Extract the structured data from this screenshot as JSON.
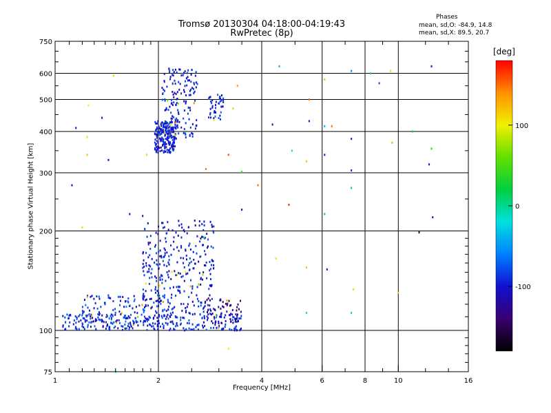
{
  "title_line1": "Tromsø 20130304 04:18:00-04:19:43",
  "title_line2": "RwPretec (8p)",
  "phase_stats": {
    "heading": "Phases",
    "line1": "mean, sd,O: -84.9, 14.8",
    "line2": "mean, sd,X:  89.5, 20.7"
  },
  "colorbar": {
    "unit_label": "[deg]",
    "range": [
      -180,
      180
    ],
    "ticks": [
      {
        "value": 100,
        "label": "100"
      },
      {
        "value": 0,
        "label": "0"
      },
      {
        "value": -100,
        "label": "-100"
      }
    ],
    "stops": [
      "#000000",
      "#3a0070",
      "#1010d0",
      "#0080ff",
      "#00e0e0",
      "#00d040",
      "#60e000",
      "#f0f000",
      "#ff9000",
      "#ff0000"
    ]
  },
  "chart_data": {
    "type": "scatter",
    "title": "Tromsø 20130304 04:18:00-04:19:43",
    "subtitle": "RwPretec (8p)",
    "xlabel": "Frequency [MHz]",
    "ylabel": "Stationary phase Virtual Height [km]",
    "x_scale": "log",
    "y_scale": "log",
    "xlim": [
      1,
      16
    ],
    "ylim": [
      75,
      750
    ],
    "x_ticks": [
      {
        "value": 1,
        "label": "1"
      },
      {
        "value": 2,
        "label": "2"
      },
      {
        "value": 4,
        "label": "4"
      },
      {
        "value": 6,
        "label": "6"
      },
      {
        "value": 8,
        "label": "8"
      },
      {
        "value": 10,
        "label": "10"
      },
      {
        "value": 16,
        "label": "16"
      }
    ],
    "y_ticks": [
      {
        "value": 75,
        "label": "75"
      },
      {
        "value": 100,
        "label": "100"
      },
      {
        "value": 200,
        "label": "200"
      },
      {
        "value": 300,
        "label": "300"
      },
      {
        "value": 400,
        "label": "400"
      },
      {
        "value": 500,
        "label": "500"
      },
      {
        "value": 600,
        "label": "600"
      },
      {
        "value": 750,
        "label": "750"
      }
    ],
    "grid_x": [
      2,
      4,
      6,
      8,
      10
    ],
    "grid_y": [
      100,
      200,
      300,
      400,
      500,
      600
    ],
    "minor_x": [
      1.1,
      1.2,
      1.3,
      1.4,
      1.5,
      1.6,
      1.7,
      1.8,
      1.9,
      2.5,
      3,
      3.5,
      5,
      7,
      9,
      12,
      14
    ],
    "minor_y": [
      80,
      85,
      90,
      95,
      110,
      120,
      130,
      140,
      150,
      160,
      170,
      180,
      190,
      250,
      350,
      450,
      550,
      650,
      700
    ],
    "color_by": "phase [deg]",
    "clusters": [
      {
        "x": [
          1.95,
          2.25
        ],
        "y": [
          345,
          430
        ],
        "n": 220,
        "phase": [
          -115,
          -75
        ]
      },
      {
        "x": [
          2.05,
          2.6
        ],
        "y": [
          380,
          620
        ],
        "n": 160,
        "phase": [
          -115,
          -75
        ]
      },
      {
        "x": [
          2.8,
          3.1
        ],
        "y": [
          430,
          520
        ],
        "n": 45,
        "phase": [
          -115,
          -70
        ]
      },
      {
        "x": [
          1.05,
          3.5
        ],
        "y": [
          100,
          112
        ],
        "n": 260,
        "phase": [
          -115,
          -70
        ]
      },
      {
        "x": [
          1.2,
          2.2
        ],
        "y": [
          102,
          128
        ],
        "n": 140,
        "phase": [
          -115,
          -60
        ]
      },
      {
        "x": [
          1.8,
          2.9
        ],
        "y": [
          112,
          215
        ],
        "n": 320,
        "phase": [
          -115,
          -75
        ]
      },
      {
        "x": [
          2.7,
          3.5
        ],
        "y": [
          105,
          125
        ],
        "n": 60,
        "phase": [
          -150,
          -100
        ]
      }
    ],
    "sparse_points": [
      {
        "x": 4.5,
        "y": 630,
        "phase": -40
      },
      {
        "x": 5.5,
        "y": 500,
        "phase": 150
      },
      {
        "x": 7.3,
        "y": 610,
        "phase": -60
      },
      {
        "x": 9.5,
        "y": 610,
        "phase": 110
      },
      {
        "x": 12.5,
        "y": 630,
        "phase": -110
      },
      {
        "x": 3.4,
        "y": 550,
        "phase": 130
      },
      {
        "x": 3.3,
        "y": 470,
        "phase": 115
      },
      {
        "x": 6.1,
        "y": 575,
        "phase": 120
      },
      {
        "x": 8.3,
        "y": 600,
        "phase": -10
      },
      {
        "x": 8.8,
        "y": 560,
        "phase": -80
      },
      {
        "x": 4.3,
        "y": 420,
        "phase": -120
      },
      {
        "x": 5.5,
        "y": 430,
        "phase": -110
      },
      {
        "x": 6.1,
        "y": 415,
        "phase": -40
      },
      {
        "x": 6.4,
        "y": 415,
        "phase": 150
      },
      {
        "x": 7.3,
        "y": 380,
        "phase": -105
      },
      {
        "x": 9.6,
        "y": 370,
        "phase": 70
      },
      {
        "x": 12.5,
        "y": 355,
        "phase": 40
      },
      {
        "x": 11,
        "y": 400,
        "phase": 30
      },
      {
        "x": 4.9,
        "y": 350,
        "phase": -20
      },
      {
        "x": 5.4,
        "y": 325,
        "phase": 120
      },
      {
        "x": 6.1,
        "y": 340,
        "phase": -105
      },
      {
        "x": 7.3,
        "y": 305,
        "phase": -95
      },
      {
        "x": 12.3,
        "y": 318,
        "phase": -105
      },
      {
        "x": 3.2,
        "y": 340,
        "phase": 160
      },
      {
        "x": 3.5,
        "y": 302,
        "phase": 40
      },
      {
        "x": 3.9,
        "y": 275,
        "phase": 150
      },
      {
        "x": 7.3,
        "y": 270,
        "phase": 10
      },
      {
        "x": 4.8,
        "y": 240,
        "phase": 170
      },
      {
        "x": 3.5,
        "y": 232,
        "phase": -120
      },
      {
        "x": 6.1,
        "y": 225,
        "phase": 20
      },
      {
        "x": 12.6,
        "y": 220,
        "phase": -110
      },
      {
        "x": 11.5,
        "y": 198,
        "phase": -160
      },
      {
        "x": 4.4,
        "y": 165,
        "phase": 110
      },
      {
        "x": 5.4,
        "y": 155,
        "phase": 120
      },
      {
        "x": 6.2,
        "y": 153,
        "phase": -105
      },
      {
        "x": 7.4,
        "y": 133,
        "phase": 110
      },
      {
        "x": 10.0,
        "y": 130,
        "phase": 120
      },
      {
        "x": 5.4,
        "y": 113,
        "phase": -10
      },
      {
        "x": 7.3,
        "y": 113,
        "phase": -10
      },
      {
        "x": 3.2,
        "y": 88,
        "phase": 100
      },
      {
        "x": 1.5,
        "y": 75,
        "phase": -10
      },
      {
        "x": 1.25,
        "y": 480,
        "phase": 100
      },
      {
        "x": 1.24,
        "y": 385,
        "phase": 110
      },
      {
        "x": 1.24,
        "y": 340,
        "phase": 120
      },
      {
        "x": 1.43,
        "y": 328,
        "phase": -110
      },
      {
        "x": 1.48,
        "y": 590,
        "phase": 110
      },
      {
        "x": 1.85,
        "y": 340,
        "phase": 115
      },
      {
        "x": 1.12,
        "y": 275,
        "phase": -115
      },
      {
        "x": 1.2,
        "y": 205,
        "phase": 110
      },
      {
        "x": 1.15,
        "y": 410,
        "phase": -100
      },
      {
        "x": 1.37,
        "y": 440,
        "phase": -115
      },
      {
        "x": 2.75,
        "y": 308,
        "phase": 150
      },
      {
        "x": 1.65,
        "y": 225,
        "phase": -110
      },
      {
        "x": 1.8,
        "y": 222,
        "phase": -120
      }
    ]
  }
}
